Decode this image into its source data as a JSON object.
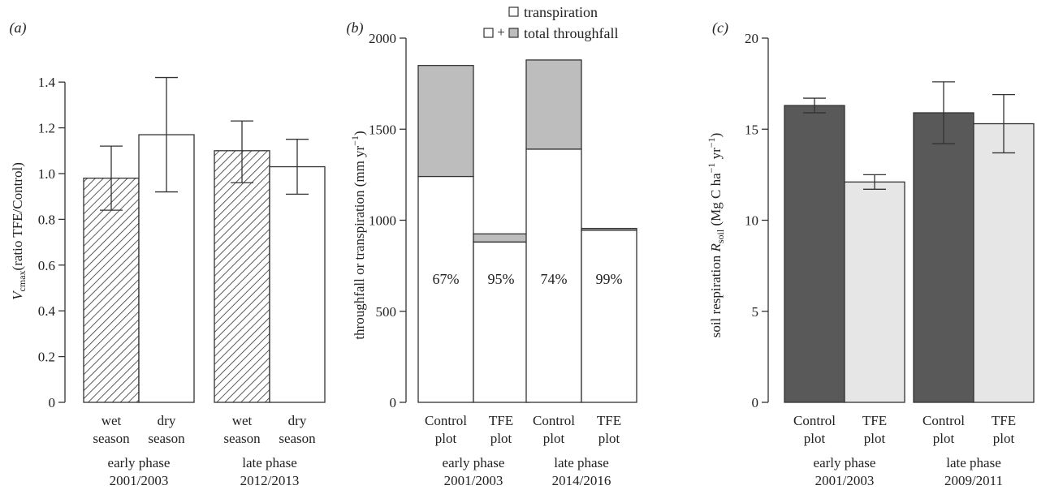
{
  "chart_data": [
    {
      "type": "bar",
      "panel_label": "(a)",
      "ylabel": "(ratio TFE/Control)",
      "ylabel_symbol": "V",
      "ylabel_subscript": "cmax",
      "ylim": [
        0,
        1.5
      ],
      "yticks": [
        "0",
        "0.2",
        "0.4",
        "0.6",
        "0.8",
        "1.0",
        "1.2",
        "1.4"
      ],
      "groups": [
        {
          "label_line1": "early phase",
          "label_line2": "2001/2003",
          "bars": [
            {
              "label_line1": "wet",
              "label_line2": "season",
              "value": 0.98,
              "error_low": 0.84,
              "error_high": 1.12,
              "style": "hatched"
            },
            {
              "label_line1": "dry",
              "label_line2": "season",
              "value": 1.17,
              "error_low": 0.92,
              "error_high": 1.42,
              "style": "white"
            }
          ]
        },
        {
          "label_line1": "late phase",
          "label_line2": "2012/2013",
          "bars": [
            {
              "label_line1": "wet",
              "label_line2": "season",
              "value": 1.1,
              "error_low": 0.96,
              "error_high": 1.23,
              "style": "hatched"
            },
            {
              "label_line1": "dry",
              "label_line2": "season",
              "value": 1.03,
              "error_low": 0.91,
              "error_high": 1.15,
              "style": "white"
            }
          ]
        }
      ]
    },
    {
      "type": "stacked_bar",
      "panel_label": "(b)",
      "ylabel": "throughfall or transpiration (mm yr",
      "ylabel_superscript": "−1",
      "ylabel_close": ")",
      "ylim": [
        0,
        2000
      ],
      "yticks": [
        "0",
        "500",
        "1000",
        "1500",
        "2000"
      ],
      "legend": {
        "items": [
          {
            "label": "transpiration",
            "swatch": "white"
          },
          {
            "label": "total throughfall",
            "swatch": "white+grey",
            "plus": "+"
          }
        ]
      },
      "groups": [
        {
          "label_line1": "early phase",
          "label_line2": "2001/2003",
          "bars": [
            {
              "label_line1": "Control",
              "label_line2": "plot",
              "transpiration": 1240,
              "total": 1850,
              "percent": "67%"
            },
            {
              "label_line1": "TFE",
              "label_line2": "plot",
              "transpiration": 880,
              "total": 925,
              "percent": "95%"
            }
          ]
        },
        {
          "label_line1": "late phase",
          "label_line2": "2014/2016",
          "bars": [
            {
              "label_line1": "Control",
              "label_line2": "plot",
              "transpiration": 1390,
              "total": 1880,
              "percent": "74%"
            },
            {
              "label_line1": "TFE",
              "label_line2": "plot",
              "transpiration": 945,
              "total": 955,
              "percent": "99%"
            }
          ]
        }
      ]
    },
    {
      "type": "bar",
      "panel_label": "(c)",
      "ylabel_prefix": "soil respiration ",
      "ylabel_symbol": "R",
      "ylabel_subscript": "soil",
      "ylabel_unit1": " (Mg C ha",
      "ylabel_sup1": "−1",
      "ylabel_unit2": " yr",
      "ylabel_sup2": "−1",
      "ylabel_close": ")",
      "ylim": [
        0,
        20
      ],
      "yticks": [
        "0",
        "5",
        "10",
        "15",
        "20"
      ],
      "colors": {
        "control": "#595959",
        "tfe": "#e6e6e6"
      },
      "groups": [
        {
          "label_line1": "early phase",
          "label_line2": "2001/2003",
          "bars": [
            {
              "label_line1": "Control",
              "label_line2": "plot",
              "value": 16.3,
              "error_low": 15.9,
              "error_high": 16.7,
              "style": "control"
            },
            {
              "label_line1": "TFE",
              "label_line2": "plot",
              "value": 12.1,
              "error_low": 11.7,
              "error_high": 12.5,
              "style": "tfe"
            }
          ]
        },
        {
          "label_line1": "late phase",
          "label_line2": "2009/2011",
          "bars": [
            {
              "label_line1": "Control",
              "label_line2": "plot",
              "value": 15.9,
              "error_low": 14.2,
              "error_high": 17.6,
              "style": "control"
            },
            {
              "label_line1": "TFE",
              "label_line2": "plot",
              "value": 15.3,
              "error_low": 13.7,
              "error_high": 16.9,
              "style": "tfe"
            }
          ]
        }
      ]
    }
  ]
}
